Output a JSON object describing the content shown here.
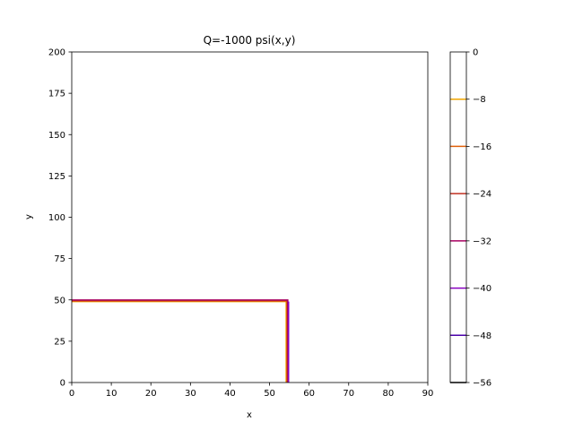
{
  "chart_data": {
    "type": "contour",
    "title": "Q=-1000 psi(x,y)",
    "xlabel": "x",
    "ylabel": "y",
    "xlim": [
      0,
      90
    ],
    "ylim": [
      0,
      200
    ],
    "xticks": [
      0,
      10,
      20,
      30,
      40,
      50,
      60,
      70,
      80,
      90
    ],
    "yticks": [
      0,
      25,
      50,
      75,
      100,
      125,
      150,
      175,
      200
    ],
    "grid": false,
    "colorbar": {
      "range": [
        -56,
        0
      ],
      "ticks": [
        0,
        -8,
        -16,
        -24,
        -32,
        -40,
        -48,
        -56
      ],
      "levels": [
        {
          "value": -8,
          "color": "#f0a500"
        },
        {
          "value": -16,
          "color": "#e0600a"
        },
        {
          "value": -24,
          "color": "#c03020"
        },
        {
          "value": -32,
          "color": "#a80060"
        },
        {
          "value": -40,
          "color": "#8800c0"
        },
        {
          "value": -48,
          "color": "#4a00a8"
        },
        {
          "value": -56,
          "color": "#000000"
        }
      ]
    },
    "contours": [
      {
        "value": -8,
        "color": "#f0a500",
        "x": [
          0,
          54.2,
          54.2
        ],
        "y": [
          49.0,
          49.0,
          0
        ]
      },
      {
        "value": -16,
        "color": "#e0600a",
        "x": [
          0,
          54.4,
          54.4
        ],
        "y": [
          49.3,
          49.3,
          0
        ]
      },
      {
        "value": -24,
        "color": "#c03020",
        "x": [
          0,
          54.5,
          54.5
        ],
        "y": [
          49.6,
          49.6,
          0
        ]
      },
      {
        "value": -32,
        "color": "#a80060",
        "x": [
          0,
          54.6,
          54.7
        ],
        "y": [
          49.9,
          49.9,
          0
        ]
      },
      {
        "value": -40,
        "color": "#8800c0",
        "x": [
          54.8,
          54.8
        ],
        "y": [
          49.0,
          0
        ]
      }
    ]
  }
}
